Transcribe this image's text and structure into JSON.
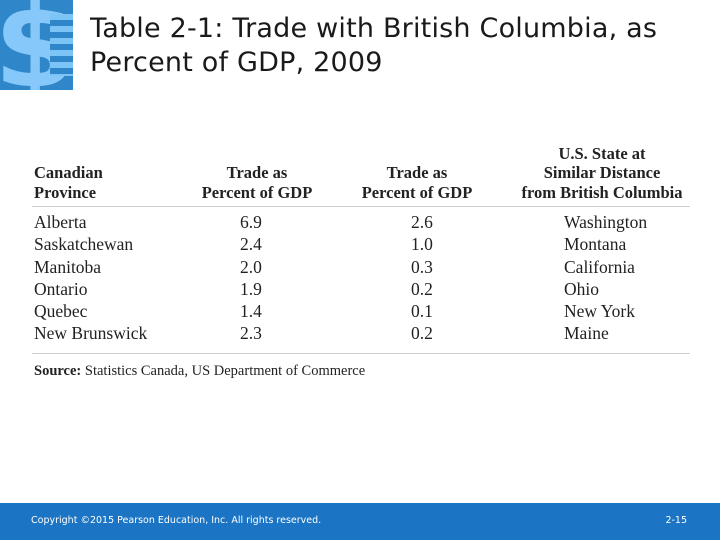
{
  "logo": {
    "glyph": "$",
    "icon": "dollar-sign-logo-icon",
    "color": "#2f86c8"
  },
  "title": "Table 2-1: Trade with British Columbia, as Percent of GDP, 2009",
  "table": {
    "headers": [
      [
        "Canadian",
        "Province"
      ],
      [
        "Trade as",
        "Percent of GDP"
      ],
      [
        "Trade as",
        "Percent of GDP"
      ],
      [
        "U.S. State at",
        "Similar Distance",
        "from British Columbia"
      ]
    ],
    "rows": [
      [
        "Alberta",
        "6.9",
        "2.6",
        "Washington"
      ],
      [
        "Saskatchewan",
        "2.4",
        "1.0",
        "Montana"
      ],
      [
        "Manitoba",
        "2.0",
        "0.3",
        "California"
      ],
      [
        "Ontario",
        "1.9",
        "0.2",
        "Ohio"
      ],
      [
        "Quebec",
        "1.4",
        "0.1",
        "New York"
      ],
      [
        "New Brunswick",
        "2.3",
        "0.2",
        "Maine"
      ]
    ],
    "source_label": "Source:",
    "source_text": "Statistics Canada, US Department of Commerce"
  },
  "footer": {
    "copyright": "Copyright ©2015 Pearson Education, Inc. All rights reserved.",
    "page": "2-15",
    "color": "#1b75c4"
  }
}
